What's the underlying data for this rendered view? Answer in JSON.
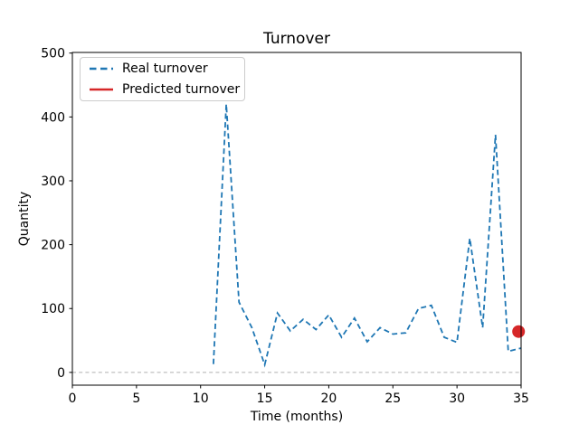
{
  "figure": {
    "background": "#ffffff",
    "text_color": "#000000",
    "spine_color": "#000000"
  },
  "chart_data": {
    "type": "line",
    "title": "Turnover",
    "xlabel": "Time (months)",
    "ylabel": "Quantity",
    "xlim": [
      0,
      35
    ],
    "ylim": [
      -20,
      501
    ],
    "xticks": [
      0,
      5,
      10,
      15,
      20,
      25,
      30,
      35
    ],
    "yticks": [
      0,
      100,
      200,
      300,
      400,
      500
    ],
    "grid": false,
    "legend_position": "upper left",
    "zero_line": {
      "y": 0,
      "color": "#b0b0b0",
      "style": "dashed"
    },
    "legend": [
      {
        "label": "Real turnover",
        "color": "#1f77b4",
        "linestyle": "dashed"
      },
      {
        "label": "Predicted turnover",
        "color": "#d62728",
        "linestyle": "solid"
      }
    ],
    "series": [
      {
        "name": "Real turnover",
        "type": "line",
        "color": "#1f77b4",
        "linestyle": "dashed",
        "x": [
          11,
          12,
          13,
          14,
          15,
          16,
          17,
          18,
          19,
          20,
          21,
          22,
          23,
          24,
          25,
          26,
          27,
          28,
          29,
          30,
          31,
          32,
          33,
          34,
          35
        ],
        "y": [
          13,
          420,
          110,
          70,
          12,
          93,
          65,
          83,
          67,
          90,
          55,
          85,
          48,
          70,
          60,
          62,
          100,
          105,
          55,
          47,
          210,
          70,
          372,
          33,
          38
        ]
      },
      {
        "name": "Predicted turnover",
        "type": "scatter",
        "color": "#d62728",
        "marker": "circle",
        "x": [
          34.8
        ],
        "y": [
          64
        ]
      }
    ]
  }
}
